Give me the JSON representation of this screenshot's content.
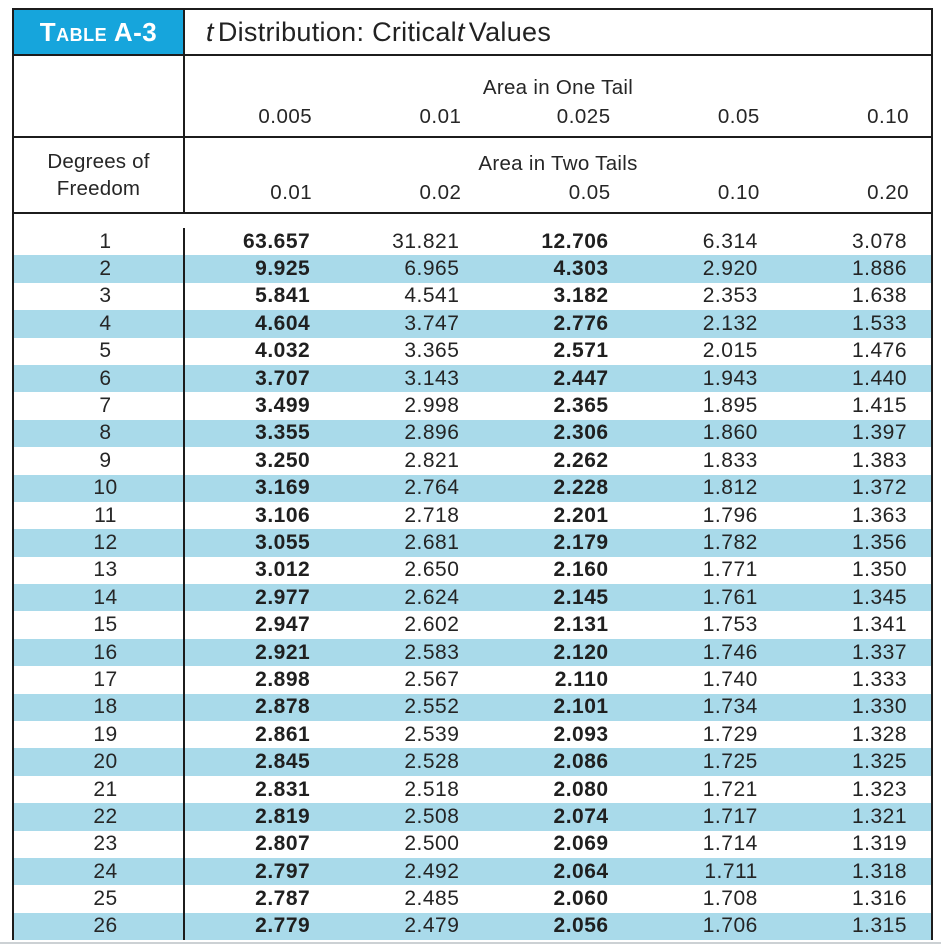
{
  "table": {
    "tag": "Table A-3",
    "title_segments": [
      {
        "text": "t",
        "italic": true
      },
      {
        "text": " Distribution: Critical ",
        "italic": false
      },
      {
        "text": "t",
        "italic": true
      },
      {
        "text": " Values",
        "italic": false
      }
    ],
    "df_label": [
      "Degrees of",
      "Freedom"
    ],
    "one_tail": {
      "label": "Area in One Tail",
      "values": [
        "0.005",
        "0.01",
        "0.025",
        "0.05",
        "0.10"
      ]
    },
    "two_tails": {
      "label": "Area in Two Tails",
      "values": [
        "0.01",
        "0.02",
        "0.05",
        "0.10",
        "0.20"
      ]
    },
    "emphasized_value_columns": [
      0,
      2
    ],
    "rows": [
      {
        "df": "1",
        "values": [
          "63.657",
          "31.821",
          "12.706",
          "6.314",
          "3.078"
        ]
      },
      {
        "df": "2",
        "values": [
          "9.925",
          "6.965",
          "4.303",
          "2.920",
          "1.886"
        ]
      },
      {
        "df": "3",
        "values": [
          "5.841",
          "4.541",
          "3.182",
          "2.353",
          "1.638"
        ]
      },
      {
        "df": "4",
        "values": [
          "4.604",
          "3.747",
          "2.776",
          "2.132",
          "1.533"
        ]
      },
      {
        "df": "5",
        "values": [
          "4.032",
          "3.365",
          "2.571",
          "2.015",
          "1.476"
        ]
      },
      {
        "df": "6",
        "values": [
          "3.707",
          "3.143",
          "2.447",
          "1.943",
          "1.440"
        ]
      },
      {
        "df": "7",
        "values": [
          "3.499",
          "2.998",
          "2.365",
          "1.895",
          "1.415"
        ]
      },
      {
        "df": "8",
        "values": [
          "3.355",
          "2.896",
          "2.306",
          "1.860",
          "1.397"
        ]
      },
      {
        "df": "9",
        "values": [
          "3.250",
          "2.821",
          "2.262",
          "1.833",
          "1.383"
        ]
      },
      {
        "df": "10",
        "values": [
          "3.169",
          "2.764",
          "2.228",
          "1.812",
          "1.372"
        ]
      },
      {
        "df": "11",
        "values": [
          "3.106",
          "2.718",
          "2.201",
          "1.796",
          "1.363"
        ]
      },
      {
        "df": "12",
        "values": [
          "3.055",
          "2.681",
          "2.179",
          "1.782",
          "1.356"
        ]
      },
      {
        "df": "13",
        "values": [
          "3.012",
          "2.650",
          "2.160",
          "1.771",
          "1.350"
        ]
      },
      {
        "df": "14",
        "values": [
          "2.977",
          "2.624",
          "2.145",
          "1.761",
          "1.345"
        ]
      },
      {
        "df": "15",
        "values": [
          "2.947",
          "2.602",
          "2.131",
          "1.753",
          "1.341"
        ]
      },
      {
        "df": "16",
        "values": [
          "2.921",
          "2.583",
          "2.120",
          "1.746",
          "1.337"
        ]
      },
      {
        "df": "17",
        "values": [
          "2.898",
          "2.567",
          "2.110",
          "1.740",
          "1.333"
        ]
      },
      {
        "df": "18",
        "values": [
          "2.878",
          "2.552",
          "2.101",
          "1.734",
          "1.330"
        ]
      },
      {
        "df": "19",
        "values": [
          "2.861",
          "2.539",
          "2.093",
          "1.729",
          "1.328"
        ]
      },
      {
        "df": "20",
        "values": [
          "2.845",
          "2.528",
          "2.086",
          "1.725",
          "1.325"
        ]
      },
      {
        "df": "21",
        "values": [
          "2.831",
          "2.518",
          "2.080",
          "1.721",
          "1.323"
        ]
      },
      {
        "df": "22",
        "values": [
          "2.819",
          "2.508",
          "2.074",
          "1.717",
          "1.321"
        ]
      },
      {
        "df": "23",
        "values": [
          "2.807",
          "2.500",
          "2.069",
          "1.714",
          "1.319"
        ]
      },
      {
        "df": "24",
        "values": [
          "2.797",
          "2.492",
          "2.064",
          "1.711",
          "1.318"
        ]
      },
      {
        "df": "25",
        "values": [
          "2.787",
          "2.485",
          "2.060",
          "1.708",
          "1.316"
        ]
      },
      {
        "df": "26",
        "values": [
          "2.779",
          "2.479",
          "2.056",
          "1.706",
          "1.315"
        ]
      }
    ]
  },
  "colors": {
    "tag_background": "#16A5DC",
    "row_highlight": "#A9DAEA",
    "border": "#1c1c1c"
  }
}
